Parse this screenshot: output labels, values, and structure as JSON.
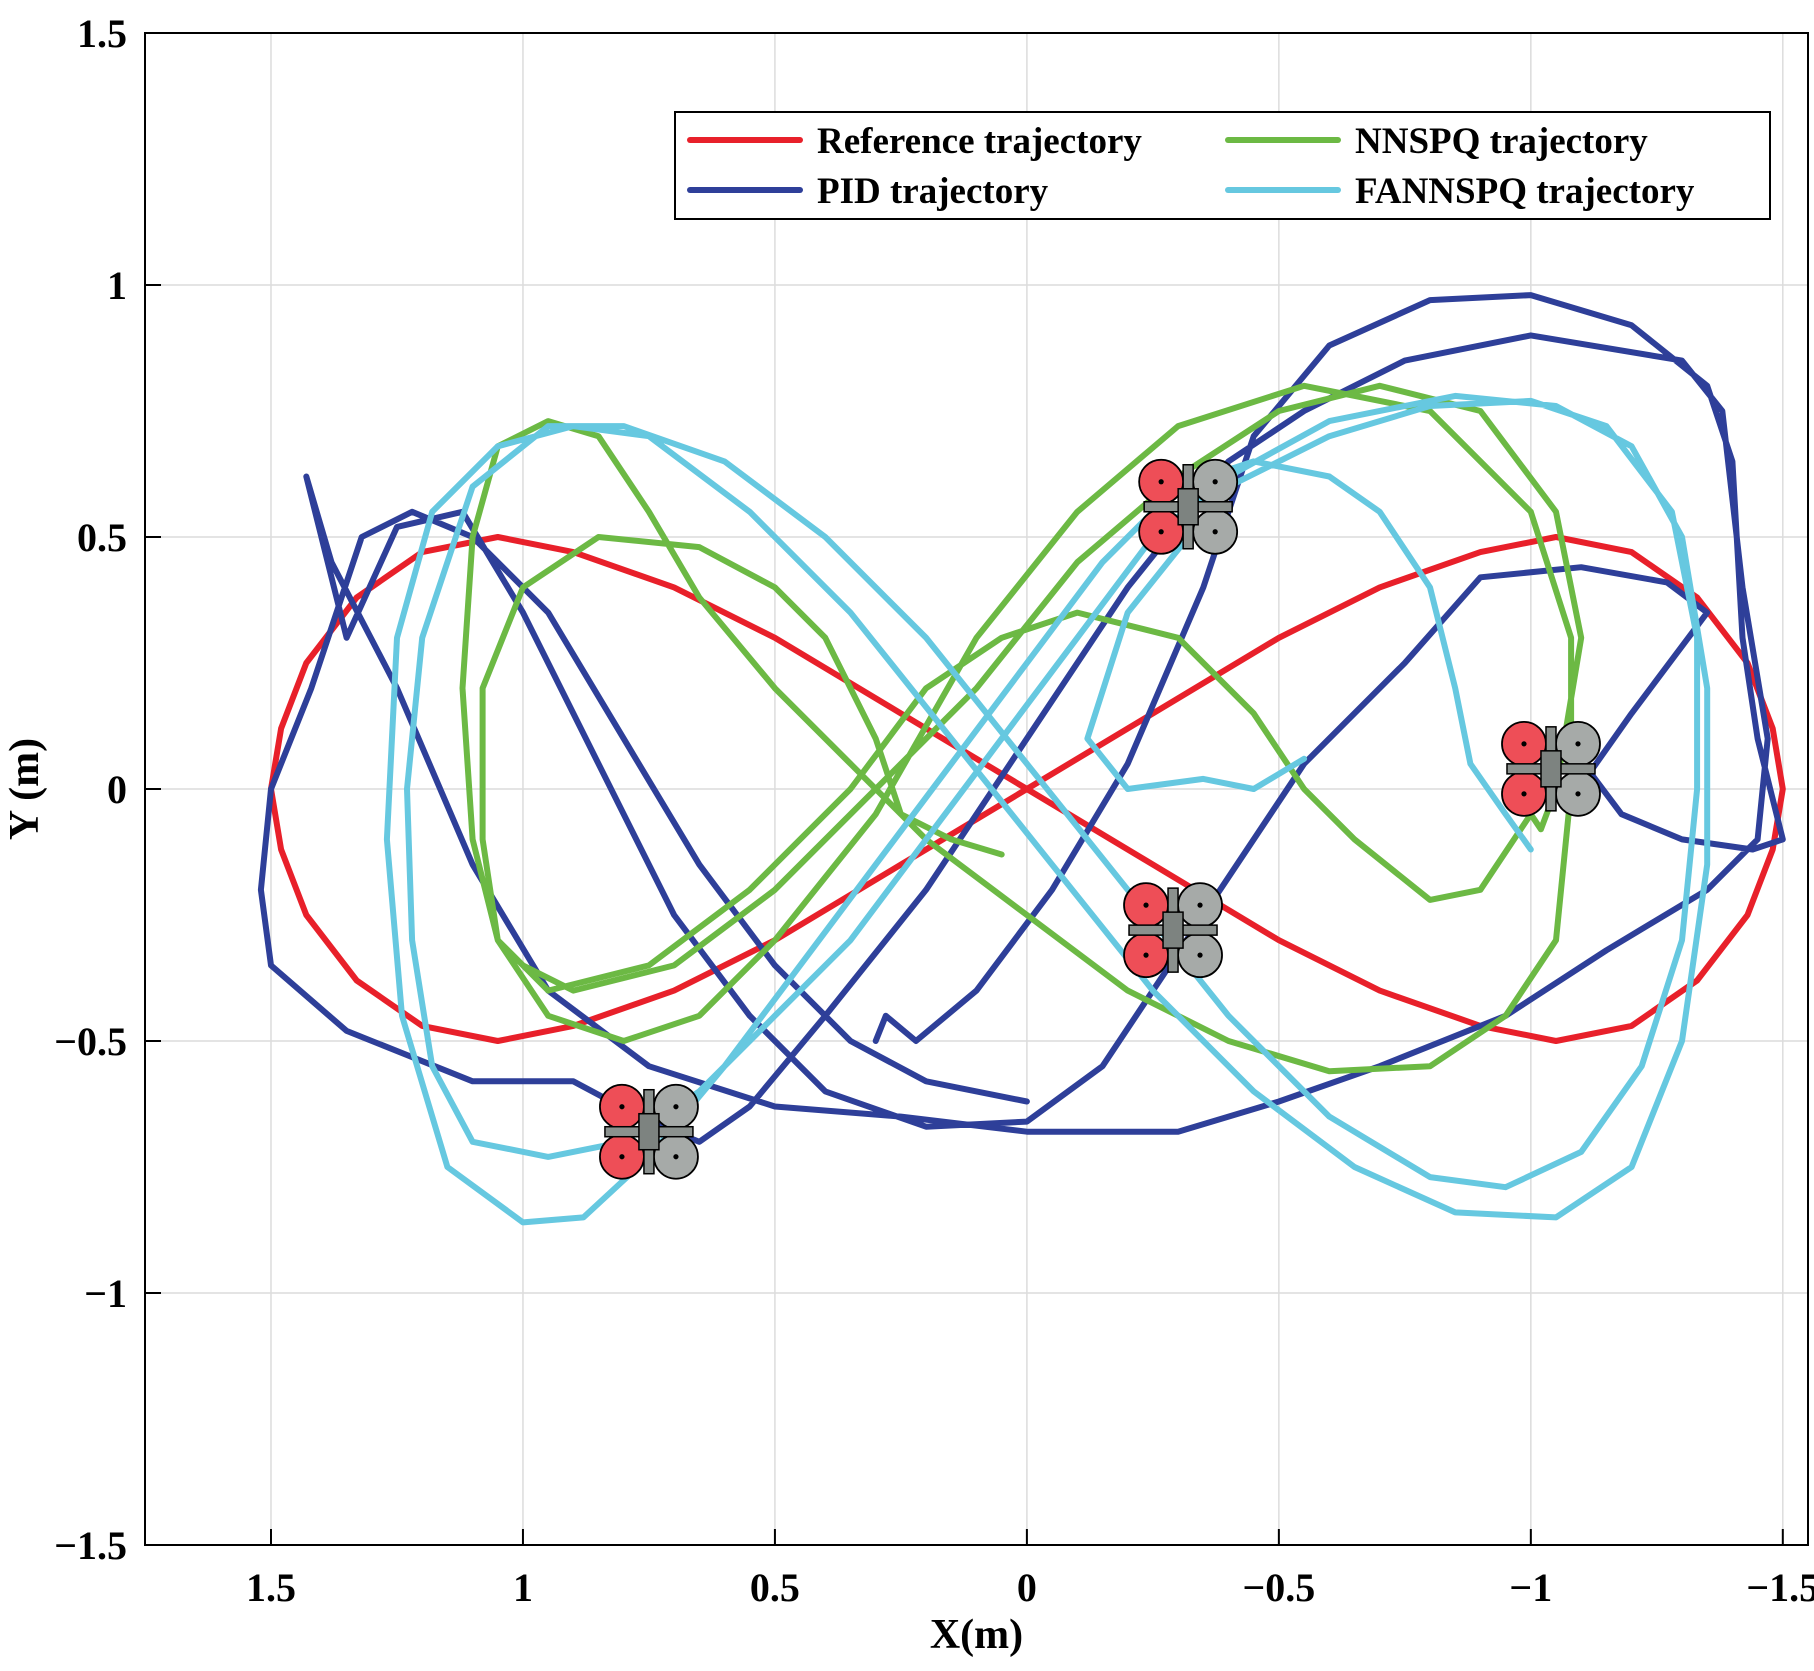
{
  "chart_data": {
    "type": "line",
    "title": "",
    "xlabel": "X(m)",
    "ylabel": "Y (m)",
    "xlim": [
      1.75,
      -1.55
    ],
    "ylim": [
      -1.5,
      1.5
    ],
    "x_reversed": true,
    "grid": true,
    "legend_position": "top-right",
    "x_ticks": [
      1.5,
      1,
      0.5,
      0,
      -0.5,
      -1,
      -1.5
    ],
    "x_tick_labels": [
      "1.5",
      "1",
      "0.5",
      "0",
      "−0.5",
      "−1",
      "−1.5"
    ],
    "y_ticks": [
      1.5,
      1,
      0.5,
      0,
      -0.5,
      -1,
      -1.5
    ],
    "y_tick_labels": [
      "1.5",
      "1",
      "0.5",
      "0",
      "−0.5",
      "−1",
      "−1.5"
    ],
    "series": [
      {
        "name": "Reference trajectory",
        "color": "#e8202a",
        "points": [
          [
            1.5,
            0
          ],
          [
            1.48,
            0.12
          ],
          [
            1.43,
            0.25
          ],
          [
            1.33,
            0.38
          ],
          [
            1.2,
            0.47
          ],
          [
            1.05,
            0.5
          ],
          [
            0.9,
            0.47
          ],
          [
            0.7,
            0.4
          ],
          [
            0.5,
            0.3
          ],
          [
            0.25,
            0.15
          ],
          [
            0,
            0
          ],
          [
            -0.25,
            -0.15
          ],
          [
            -0.5,
            -0.3
          ],
          [
            -0.7,
            -0.4
          ],
          [
            -0.9,
            -0.47
          ],
          [
            -1.05,
            -0.5
          ],
          [
            -1.2,
            -0.47
          ],
          [
            -1.33,
            -0.38
          ],
          [
            -1.43,
            -0.25
          ],
          [
            -1.48,
            -0.12
          ],
          [
            -1.5,
            0
          ],
          [
            -1.48,
            0.12
          ],
          [
            -1.43,
            0.25
          ],
          [
            -1.33,
            0.38
          ],
          [
            -1.2,
            0.47
          ],
          [
            -1.05,
            0.5
          ],
          [
            -0.9,
            0.47
          ],
          [
            -0.7,
            0.4
          ],
          [
            -0.5,
            0.3
          ],
          [
            -0.25,
            0.15
          ],
          [
            0,
            0
          ],
          [
            0.25,
            -0.15
          ],
          [
            0.5,
            -0.3
          ],
          [
            0.7,
            -0.4
          ],
          [
            0.9,
            -0.47
          ],
          [
            1.05,
            -0.5
          ],
          [
            1.2,
            -0.47
          ],
          [
            1.33,
            -0.38
          ],
          [
            1.43,
            -0.25
          ],
          [
            1.48,
            -0.12
          ],
          [
            1.5,
            0
          ]
        ]
      },
      {
        "name": "PID trajectory",
        "color": "#2e3f99",
        "points": [
          [
            0.3,
            -0.5
          ],
          [
            0.28,
            -0.45
          ],
          [
            0.22,
            -0.5
          ],
          [
            0.1,
            -0.4
          ],
          [
            -0.05,
            -0.2
          ],
          [
            -0.2,
            0.05
          ],
          [
            -0.35,
            0.4
          ],
          [
            -0.45,
            0.7
          ],
          [
            -0.6,
            0.88
          ],
          [
            -0.8,
            0.97
          ],
          [
            -1.0,
            0.98
          ],
          [
            -1.2,
            0.92
          ],
          [
            -1.35,
            0.8
          ],
          [
            -1.4,
            0.65
          ],
          [
            -1.42,
            0.3
          ],
          [
            -1.45,
            0.1
          ],
          [
            -1.5,
            -0.1
          ],
          [
            -1.44,
            -0.12
          ],
          [
            -1.3,
            -0.1
          ],
          [
            -1.18,
            -0.05
          ],
          [
            -1.12,
            0.03
          ],
          [
            -1.08,
            -0.02
          ],
          [
            -1.2,
            0.15
          ],
          [
            -1.35,
            0.35
          ],
          [
            -1.27,
            0.41
          ],
          [
            -1.1,
            0.44
          ],
          [
            -0.9,
            0.42
          ],
          [
            -0.75,
            0.25
          ],
          [
            -0.55,
            0.05
          ],
          [
            -0.35,
            -0.25
          ],
          [
            -0.15,
            -0.55
          ],
          [
            0.0,
            -0.66
          ],
          [
            0.2,
            -0.67
          ],
          [
            0.4,
            -0.6
          ],
          [
            0.55,
            -0.45
          ],
          [
            0.7,
            -0.25
          ],
          [
            0.85,
            0.05
          ],
          [
            1.0,
            0.35
          ],
          [
            1.12,
            0.55
          ],
          [
            1.25,
            0.52
          ],
          [
            1.35,
            0.3
          ],
          [
            1.43,
            0.62
          ],
          [
            1.38,
            0.45
          ],
          [
            1.25,
            0.2
          ],
          [
            1.1,
            -0.15
          ],
          [
            0.95,
            -0.4
          ],
          [
            0.75,
            -0.55
          ],
          [
            0.5,
            -0.63
          ],
          [
            0.25,
            -0.65
          ],
          [
            0.0,
            -0.68
          ],
          [
            -0.3,
            -0.68
          ],
          [
            -0.5,
            -0.62
          ],
          [
            -0.7,
            -0.55
          ],
          [
            -0.95,
            -0.45
          ],
          [
            -1.15,
            -0.32
          ],
          [
            -1.35,
            -0.2
          ],
          [
            -1.45,
            -0.1
          ],
          [
            -1.47,
            0.1
          ],
          [
            -1.42,
            0.4
          ],
          [
            -1.38,
            0.75
          ],
          [
            -1.3,
            0.85
          ],
          [
            -1.0,
            0.9
          ],
          [
            -0.75,
            0.85
          ],
          [
            -0.55,
            0.75
          ],
          [
            -0.4,
            0.65
          ],
          [
            -0.2,
            0.4
          ],
          [
            0.0,
            0.1
          ],
          [
            0.2,
            -0.2
          ],
          [
            0.4,
            -0.45
          ],
          [
            0.55,
            -0.63
          ],
          [
            0.65,
            -0.7
          ],
          [
            0.75,
            -0.66
          ],
          [
            0.9,
            -0.58
          ],
          [
            1.1,
            -0.58
          ],
          [
            1.35,
            -0.48
          ],
          [
            1.5,
            -0.35
          ],
          [
            1.52,
            -0.2
          ],
          [
            1.5,
            0.0
          ],
          [
            1.42,
            0.2
          ],
          [
            1.32,
            0.5
          ],
          [
            1.22,
            0.55
          ],
          [
            1.1,
            0.5
          ],
          [
            0.95,
            0.35
          ],
          [
            0.8,
            0.1
          ],
          [
            0.65,
            -0.15
          ],
          [
            0.5,
            -0.35
          ],
          [
            0.35,
            -0.5
          ],
          [
            0.2,
            -0.58
          ],
          [
            0.1,
            -0.6
          ],
          [
            0.0,
            -0.62
          ]
        ]
      },
      {
        "name": "NNSPQ trajectory",
        "color": "#6cb944",
        "points": [
          [
            0.05,
            -0.13
          ],
          [
            0.15,
            -0.1
          ],
          [
            0.25,
            -0.05
          ],
          [
            0.3,
            0.1
          ],
          [
            0.35,
            0.2
          ],
          [
            0.4,
            0.3
          ],
          [
            0.5,
            0.4
          ],
          [
            0.65,
            0.48
          ],
          [
            0.85,
            0.5
          ],
          [
            1.0,
            0.4
          ],
          [
            1.08,
            0.2
          ],
          [
            1.08,
            -0.1
          ],
          [
            1.05,
            -0.3
          ],
          [
            0.95,
            -0.45
          ],
          [
            0.8,
            -0.5
          ],
          [
            0.65,
            -0.45
          ],
          [
            0.5,
            -0.3
          ],
          [
            0.3,
            -0.05
          ],
          [
            0.1,
            0.3
          ],
          [
            -0.1,
            0.55
          ],
          [
            -0.3,
            0.72
          ],
          [
            -0.55,
            0.8
          ],
          [
            -0.8,
            0.75
          ],
          [
            -1.0,
            0.55
          ],
          [
            -1.08,
            0.3
          ],
          [
            -1.08,
            0.0
          ],
          [
            -1.05,
            -0.3
          ],
          [
            -0.95,
            -0.45
          ],
          [
            -0.8,
            -0.55
          ],
          [
            -0.6,
            -0.56
          ],
          [
            -0.4,
            -0.5
          ],
          [
            -0.2,
            -0.4
          ],
          [
            0.0,
            -0.25
          ],
          [
            0.2,
            -0.1
          ],
          [
            0.35,
            0.05
          ],
          [
            0.5,
            0.2
          ],
          [
            0.65,
            0.38
          ],
          [
            0.75,
            0.55
          ],
          [
            0.85,
            0.7
          ],
          [
            0.95,
            0.73
          ],
          [
            1.05,
            0.68
          ],
          [
            1.1,
            0.5
          ],
          [
            1.12,
            0.2
          ],
          [
            1.1,
            -0.1
          ],
          [
            1.05,
            -0.3
          ],
          [
            0.95,
            -0.4
          ],
          [
            0.75,
            -0.35
          ],
          [
            0.55,
            -0.2
          ],
          [
            0.35,
            0.0
          ],
          [
            0.2,
            0.2
          ],
          [
            0.05,
            0.3
          ],
          [
            -0.1,
            0.35
          ],
          [
            -0.3,
            0.3
          ],
          [
            -0.45,
            0.15
          ],
          [
            -0.55,
            0.0
          ],
          [
            -0.65,
            -0.1
          ],
          [
            -0.8,
            -0.22
          ],
          [
            -0.9,
            -0.2
          ],
          [
            -1.0,
            -0.05
          ],
          [
            -1.02,
            -0.08
          ],
          [
            -1.05,
            0.0
          ],
          [
            -1.1,
            0.3
          ],
          [
            -1.05,
            0.55
          ],
          [
            -0.9,
            0.75
          ],
          [
            -0.7,
            0.8
          ],
          [
            -0.5,
            0.75
          ],
          [
            -0.3,
            0.62
          ],
          [
            -0.1,
            0.45
          ],
          [
            0.1,
            0.2
          ],
          [
            0.3,
            0.0
          ],
          [
            0.5,
            -0.2
          ],
          [
            0.7,
            -0.35
          ],
          [
            0.9,
            -0.4
          ],
          [
            1.0,
            -0.35
          ]
        ]
      },
      {
        "name": "FANNSPQ trajectory",
        "color": "#66c8e0",
        "points": [
          [
            -0.55,
            0.06
          ],
          [
            -0.5,
            0.03
          ],
          [
            -0.45,
            0.0
          ],
          [
            -0.35,
            0.02
          ],
          [
            -0.2,
            0.0
          ],
          [
            -0.12,
            0.1
          ],
          [
            -0.2,
            0.35
          ],
          [
            -0.4,
            0.6
          ],
          [
            -0.6,
            0.7
          ],
          [
            -0.8,
            0.76
          ],
          [
            -1.0,
            0.77
          ],
          [
            -1.15,
            0.72
          ],
          [
            -1.28,
            0.55
          ],
          [
            -1.33,
            0.3
          ],
          [
            -1.33,
            0.0
          ],
          [
            -1.3,
            -0.3
          ],
          [
            -1.22,
            -0.55
          ],
          [
            -1.1,
            -0.72
          ],
          [
            -0.95,
            -0.79
          ],
          [
            -0.8,
            -0.77
          ],
          [
            -0.6,
            -0.65
          ],
          [
            -0.4,
            -0.45
          ],
          [
            -0.2,
            -0.2
          ],
          [
            0.0,
            0.05
          ],
          [
            0.2,
            0.3
          ],
          [
            0.4,
            0.5
          ],
          [
            0.6,
            0.65
          ],
          [
            0.8,
            0.72
          ],
          [
            0.95,
            0.72
          ],
          [
            1.1,
            0.6
          ],
          [
            1.2,
            0.3
          ],
          [
            1.23,
            0.0
          ],
          [
            1.22,
            -0.3
          ],
          [
            1.18,
            -0.55
          ],
          [
            1.1,
            -0.7
          ],
          [
            0.95,
            -0.73
          ],
          [
            0.8,
            -0.7
          ],
          [
            0.65,
            -0.6
          ],
          [
            0.5,
            -0.45
          ],
          [
            0.35,
            -0.3
          ],
          [
            0.2,
            -0.1
          ],
          [
            0.05,
            0.1
          ],
          [
            -0.1,
            0.3
          ],
          [
            -0.25,
            0.5
          ],
          [
            -0.4,
            0.62
          ],
          [
            -0.6,
            0.73
          ],
          [
            -0.85,
            0.78
          ],
          [
            -1.05,
            0.76
          ],
          [
            -1.2,
            0.68
          ],
          [
            -1.3,
            0.5
          ],
          [
            -1.35,
            0.2
          ],
          [
            -1.35,
            -0.15
          ],
          [
            -1.3,
            -0.5
          ],
          [
            -1.2,
            -0.75
          ],
          [
            -1.05,
            -0.85
          ],
          [
            -0.85,
            -0.84
          ],
          [
            -0.65,
            -0.75
          ],
          [
            -0.45,
            -0.6
          ],
          [
            -0.25,
            -0.4
          ],
          [
            -0.05,
            -0.15
          ],
          [
            0.15,
            0.1
          ],
          [
            0.35,
            0.35
          ],
          [
            0.55,
            0.55
          ],
          [
            0.75,
            0.7
          ],
          [
            0.9,
            0.72
          ],
          [
            1.05,
            0.68
          ],
          [
            1.18,
            0.55
          ],
          [
            1.25,
            0.3
          ],
          [
            1.27,
            -0.1
          ],
          [
            1.24,
            -0.45
          ],
          [
            1.15,
            -0.75
          ],
          [
            1.0,
            -0.86
          ],
          [
            0.88,
            -0.85
          ],
          [
            0.75,
            -0.73
          ],
          [
            0.6,
            -0.55
          ],
          [
            0.45,
            -0.35
          ],
          [
            0.3,
            -0.15
          ],
          [
            0.15,
            0.05
          ],
          [
            0.0,
            0.25
          ],
          [
            -0.15,
            0.45
          ],
          [
            -0.3,
            0.6
          ],
          [
            -0.45,
            0.65
          ],
          [
            -0.6,
            0.62
          ],
          [
            -0.7,
            0.55
          ],
          [
            -0.8,
            0.4
          ],
          [
            -0.85,
            0.2
          ],
          [
            -0.88,
            0.05
          ],
          [
            -0.95,
            -0.05
          ],
          [
            -1.0,
            -0.12
          ]
        ]
      }
    ],
    "drone_icons": [
      {
        "x": 0.75,
        "y": -0.68
      },
      {
        "x": -0.32,
        "y": 0.56
      },
      {
        "x": -0.29,
        "y": -0.28
      },
      {
        "x": -1.04,
        "y": 0.04
      }
    ]
  }
}
